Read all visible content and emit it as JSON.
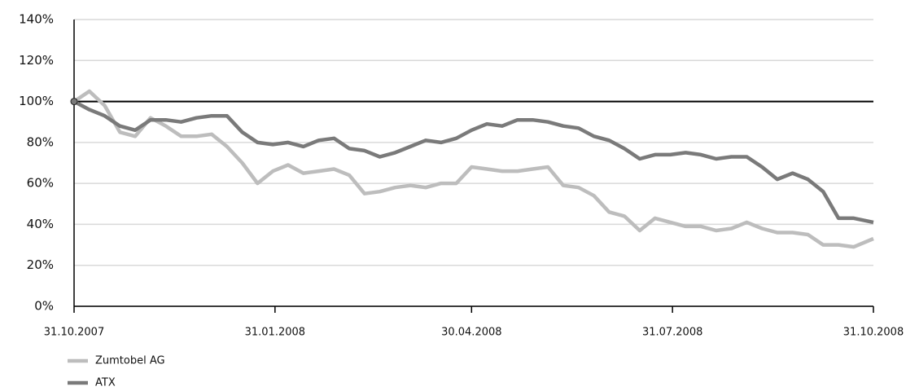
{
  "chart_data": {
    "type": "line",
    "x": [
      "2007-10-31",
      "2007-11-07",
      "2007-11-14",
      "2007-11-21",
      "2007-11-28",
      "2007-12-05",
      "2007-12-12",
      "2007-12-19",
      "2007-12-26",
      "2008-01-02",
      "2008-01-09",
      "2008-01-16",
      "2008-01-23",
      "2008-01-30",
      "2008-02-06",
      "2008-02-13",
      "2008-02-20",
      "2008-02-27",
      "2008-03-05",
      "2008-03-12",
      "2008-03-19",
      "2008-03-26",
      "2008-04-02",
      "2008-04-09",
      "2008-04-16",
      "2008-04-23",
      "2008-04-30",
      "2008-05-07",
      "2008-05-14",
      "2008-05-21",
      "2008-05-28",
      "2008-06-04",
      "2008-06-11",
      "2008-06-18",
      "2008-06-25",
      "2008-07-02",
      "2008-07-09",
      "2008-07-16",
      "2008-07-23",
      "2008-07-30",
      "2008-08-06",
      "2008-08-13",
      "2008-08-20",
      "2008-08-27",
      "2008-09-03",
      "2008-09-10",
      "2008-09-17",
      "2008-09-24",
      "2008-10-01",
      "2008-10-08",
      "2008-10-15",
      "2008-10-22",
      "2008-10-31"
    ],
    "series": [
      {
        "name": "Zumtobel AG",
        "color": "#bdbdbd",
        "values": [
          100,
          105,
          98,
          85,
          83,
          92,
          88,
          83,
          83,
          84,
          78,
          70,
          60,
          66,
          69,
          65,
          66,
          67,
          64,
          55,
          56,
          58,
          59,
          58,
          60,
          60,
          68,
          67,
          66,
          66,
          67,
          68,
          59,
          58,
          54,
          46,
          44,
          37,
          43,
          41,
          39,
          39,
          37,
          38,
          41,
          38,
          36,
          36,
          35,
          30,
          30,
          29,
          33
        ]
      },
      {
        "name": "ATX",
        "color": "#7a7a7a",
        "values": [
          100,
          96,
          93,
          88,
          86,
          91,
          91,
          90,
          92,
          93,
          93,
          85,
          80,
          79,
          80,
          78,
          81,
          82,
          77,
          76,
          73,
          75,
          78,
          81,
          80,
          82,
          86,
          89,
          88,
          91,
          91,
          90,
          88,
          87,
          83,
          81,
          77,
          72,
          74,
          74,
          75,
          74,
          72,
          73,
          73,
          68,
          62,
          65,
          62,
          56,
          43,
          43,
          41
        ]
      }
    ],
    "xlim": [
      "2007-10-31",
      "2008-10-31"
    ],
    "xticks": [
      {
        "value": "2007-10-31",
        "label": "31.10.2007"
      },
      {
        "value": "2008-01-31",
        "label": "31.01.2008"
      },
      {
        "value": "2008-04-30",
        "label": "30.04.2008"
      },
      {
        "value": "2008-07-31",
        "label": "31.07.2008"
      },
      {
        "value": "2008-10-31",
        "label": "31.10.2008"
      }
    ],
    "ylim": [
      0,
      140
    ],
    "yticks": [
      {
        "value": 0,
        "label": "0%"
      },
      {
        "value": 20,
        "label": "20%"
      },
      {
        "value": 40,
        "label": "40%"
      },
      {
        "value": 60,
        "label": "60%"
      },
      {
        "value": 80,
        "label": "80%"
      },
      {
        "value": 100,
        "label": "100%"
      },
      {
        "value": 120,
        "label": "120%"
      },
      {
        "value": 140,
        "label": "140%"
      }
    ],
    "baseline": 100,
    "grid": true,
    "legend": "bottom-left"
  }
}
